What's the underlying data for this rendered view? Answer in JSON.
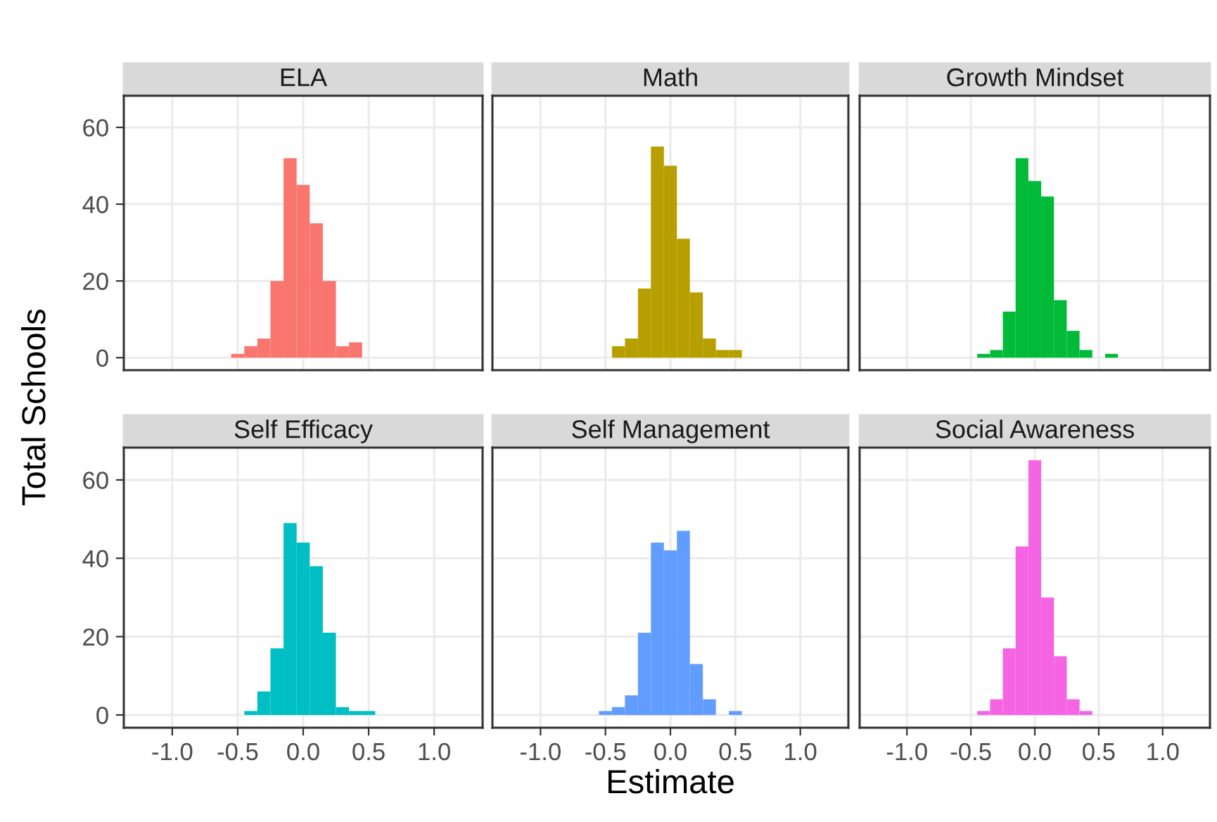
{
  "chart_data": [
    {
      "type": "histogram",
      "title": "ELA",
      "ylabel": "Total Schools",
      "bins": [
        -0.55,
        -0.45,
        -0.35,
        -0.25,
        -0.15,
        -0.05,
        0.05,
        0.15,
        0.25,
        0.35,
        0.45
      ],
      "values": [
        1,
        3,
        5,
        20,
        52,
        45,
        35,
        20,
        3,
        4
      ],
      "color": "#f8766d",
      "xlim": [
        -1.37,
        1.37
      ],
      "ylim": [
        -3.25,
        68.25
      ],
      "xticks": [
        -1,
        -0.5,
        0,
        0.5,
        1
      ],
      "yticks": [
        0,
        20,
        40,
        60
      ],
      "grid": true,
      "tick_labels": "y"
    },
    {
      "type": "histogram",
      "title": "Math",
      "bins": [
        -0.45,
        -0.35,
        -0.25,
        -0.15,
        -0.05,
        0.05,
        0.15,
        0.25,
        0.35,
        0.45,
        0.55
      ],
      "values": [
        3,
        5,
        18,
        55,
        50,
        31,
        17,
        5,
        2,
        2
      ],
      "color": "#b79f00",
      "xlim": [
        -1.37,
        1.37
      ],
      "ylim": [
        -3.25,
        68.25
      ],
      "xticks": [
        -1,
        -0.5,
        0,
        0.5,
        1
      ],
      "yticks": [
        0,
        20,
        40,
        60
      ],
      "grid": true,
      "tick_labels": false
    },
    {
      "type": "histogram",
      "title": "Growth Mindset",
      "bins": [
        -0.45,
        -0.35,
        -0.25,
        -0.15,
        -0.05,
        0.05,
        0.15,
        0.25,
        0.35,
        0.45,
        0.55,
        0.65
      ],
      "values": [
        1,
        2,
        12,
        52,
        46,
        42,
        15,
        7,
        2,
        0,
        1
      ],
      "color": "#00ba38",
      "xlim": [
        -1.37,
        1.37
      ],
      "ylim": [
        -3.25,
        68.25
      ],
      "xticks": [
        -1,
        -0.5,
        0,
        0.5,
        1
      ],
      "yticks": [
        0,
        20,
        40,
        60
      ],
      "grid": true,
      "tick_labels": false
    },
    {
      "type": "histogram",
      "title": "Self Efficacy",
      "bins": [
        -0.45,
        -0.35,
        -0.25,
        -0.15,
        -0.05,
        0.05,
        0.15,
        0.25,
        0.35,
        0.45,
        0.55
      ],
      "values": [
        1,
        6,
        17,
        49,
        44,
        38,
        21,
        2,
        1,
        1
      ],
      "color": "#00bfc4",
      "xlim": [
        -1.37,
        1.37
      ],
      "ylim": [
        -3.25,
        68.25
      ],
      "xticks": [
        {
          "value": -1,
          "label": "-1.0"
        },
        {
          "value": -0.5,
          "label": "-0.5"
        },
        {
          "value": 0,
          "label": "0.0"
        },
        {
          "value": 0.5,
          "label": "0.5"
        },
        {
          "value": 1,
          "label": "1.0"
        }
      ],
      "yticks": [
        0,
        20,
        40,
        60
      ],
      "grid": true
    },
    {
      "type": "histogram",
      "title": "Self Management",
      "xlabel": "Estimate",
      "bins": [
        -0.55,
        -0.45,
        -0.35,
        -0.25,
        -0.15,
        -0.05,
        0.05,
        0.15,
        0.25,
        0.35,
        0.45,
        0.55
      ],
      "values": [
        1,
        2,
        5,
        21,
        44,
        42,
        47,
        13,
        4,
        0,
        1
      ],
      "color": "#619cff",
      "xlim": [
        -1.37,
        1.37
      ],
      "ylim": [
        -3.25,
        68.25
      ],
      "xticks": [
        {
          "value": -1,
          "label": "-1.0"
        },
        {
          "value": -0.5,
          "label": "-0.5"
        },
        {
          "value": 0,
          "label": "0.0"
        },
        {
          "value": 0.5,
          "label": "0.5"
        },
        {
          "value": 1,
          "label": "1.0"
        }
      ],
      "yticks": [
        0,
        20,
        40,
        60
      ],
      "grid": true,
      "tick_labels": "x"
    },
    {
      "type": "histogram",
      "title": "Social Awareness",
      "bins": [
        -0.45,
        -0.35,
        -0.25,
        -0.15,
        -0.05,
        0.05,
        0.15,
        0.25,
        0.35,
        0.45
      ],
      "values": [
        1,
        4,
        17,
        43,
        65,
        30,
        15,
        4,
        1
      ],
      "color": "#f564e3",
      "xlim": [
        -1.37,
        1.37
      ],
      "ylim": [
        -3.25,
        68.25
      ],
      "xticks": [
        {
          "value": -1,
          "label": "-1.0"
        },
        {
          "value": -0.5,
          "label": "-0.5"
        },
        {
          "value": 0,
          "label": "0.0"
        },
        {
          "value": 0.5,
          "label": "0.5"
        },
        {
          "value": 1,
          "label": "1.0"
        }
      ],
      "yticks": [
        0,
        20,
        40,
        60
      ],
      "grid": true,
      "tick_labels": "x"
    }
  ]
}
